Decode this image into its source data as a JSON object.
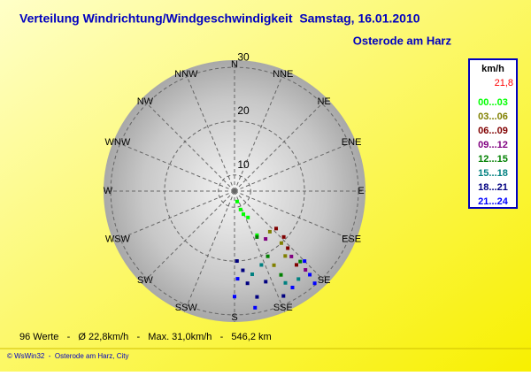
{
  "chart_data": {
    "type": "windrose",
    "title": "Verteilung Windrichtung/Windgeschwindigkeit  Samstag, 16.01.2010",
    "subtitle": "Osterode am Harz",
    "directions": [
      "N",
      "NNE",
      "NE",
      "ENE",
      "E",
      "ESE",
      "SE",
      "SSE",
      "S",
      "SSW",
      "SW",
      "WSW",
      "W",
      "WNW",
      "NW",
      "NNW"
    ],
    "rlim": [
      7,
      31
    ],
    "rticks": [
      10,
      20,
      30
    ],
    "legend_title": "km/h",
    "legend_value": "21,8",
    "series": [
      {
        "name": "00...03",
        "color": "#00ff00",
        "x": [
          166,
          162,
          159,
          153,
          153
        ],
        "values": [
          9.0,
          10.6,
          11.6,
          12.5,
          16.2
        ]
      },
      {
        "name": "03...06",
        "color": "#808000",
        "x": [
          139,
          138,
          142,
          152
        ],
        "values": [
          17.0,
          20.0,
          22.3,
          22.6
        ]
      },
      {
        "name": "06...09",
        "color": "#800000",
        "x": [
          132,
          137,
          140,
          133
        ],
        "values": [
          17.4,
          21.5,
          24.9,
          19.5
        ]
      },
      {
        "name": "09...12",
        "color": "#800080",
        "x": [
          147,
          139,
          138
        ],
        "values": [
          17.6,
          23.1,
          26.7
        ]
      },
      {
        "name": "12...15",
        "color": "#008000",
        "x": [
          154,
          153,
          151,
          137
        ],
        "values": [
          16.5,
          20.6,
          24.8,
          24.9
        ]
      },
      {
        "name": "15...18",
        "color": "#008080",
        "x": [
          160,
          151,
          144,
          168
        ],
        "values": [
          21.6,
          26.5,
          27.2,
          22.8
        ]
      },
      {
        "name": "18...21",
        "color": "#000080",
        "x": [
          178,
          174,
          172,
          161,
          168,
          155
        ],
        "values": [
          20.0,
          21.8,
          24.3,
          24.8,
          27.1,
          28.5
        ]
      },
      {
        "name": "21...24",
        "color": "#0000ff",
        "x": [
          178,
          180,
          170,
          149,
          138,
          139,
          135
        ],
        "values": [
          23.3,
          26.6,
          29.0,
          27.9,
          27.9,
          29.7,
          25.4
        ]
      }
    ],
    "summary": "96 Werte   -   Ø 22,8km/h   -   Max. 31,0km/h   -   546,2 km",
    "footer": "© WsWin32  -  Osterode am Harz, City"
  }
}
